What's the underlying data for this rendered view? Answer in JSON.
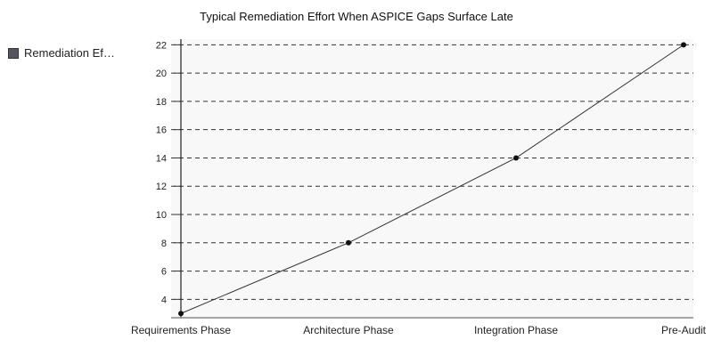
{
  "chart_data": {
    "type": "line",
    "title": "Typical Remediation Effort When ASPICE Gaps Surface Late",
    "categories": [
      "Requirements Phase",
      "Architecture Phase",
      "Integration Phase",
      "Pre-Audit"
    ],
    "series": [
      {
        "name": "Remediation Ef…",
        "values": [
          3,
          8,
          14,
          22
        ],
        "color": "#333333"
      }
    ],
    "legend_label": "Remediation Ef…",
    "legend_color": "#555560",
    "legend_position": "left",
    "yticks": [
      4,
      6,
      8,
      10,
      12,
      14,
      16,
      18,
      20,
      22
    ],
    "ylim": [
      2.7,
      22.4
    ],
    "grid": "horizontal-dashed",
    "plot_background": "#f8f8f8"
  }
}
